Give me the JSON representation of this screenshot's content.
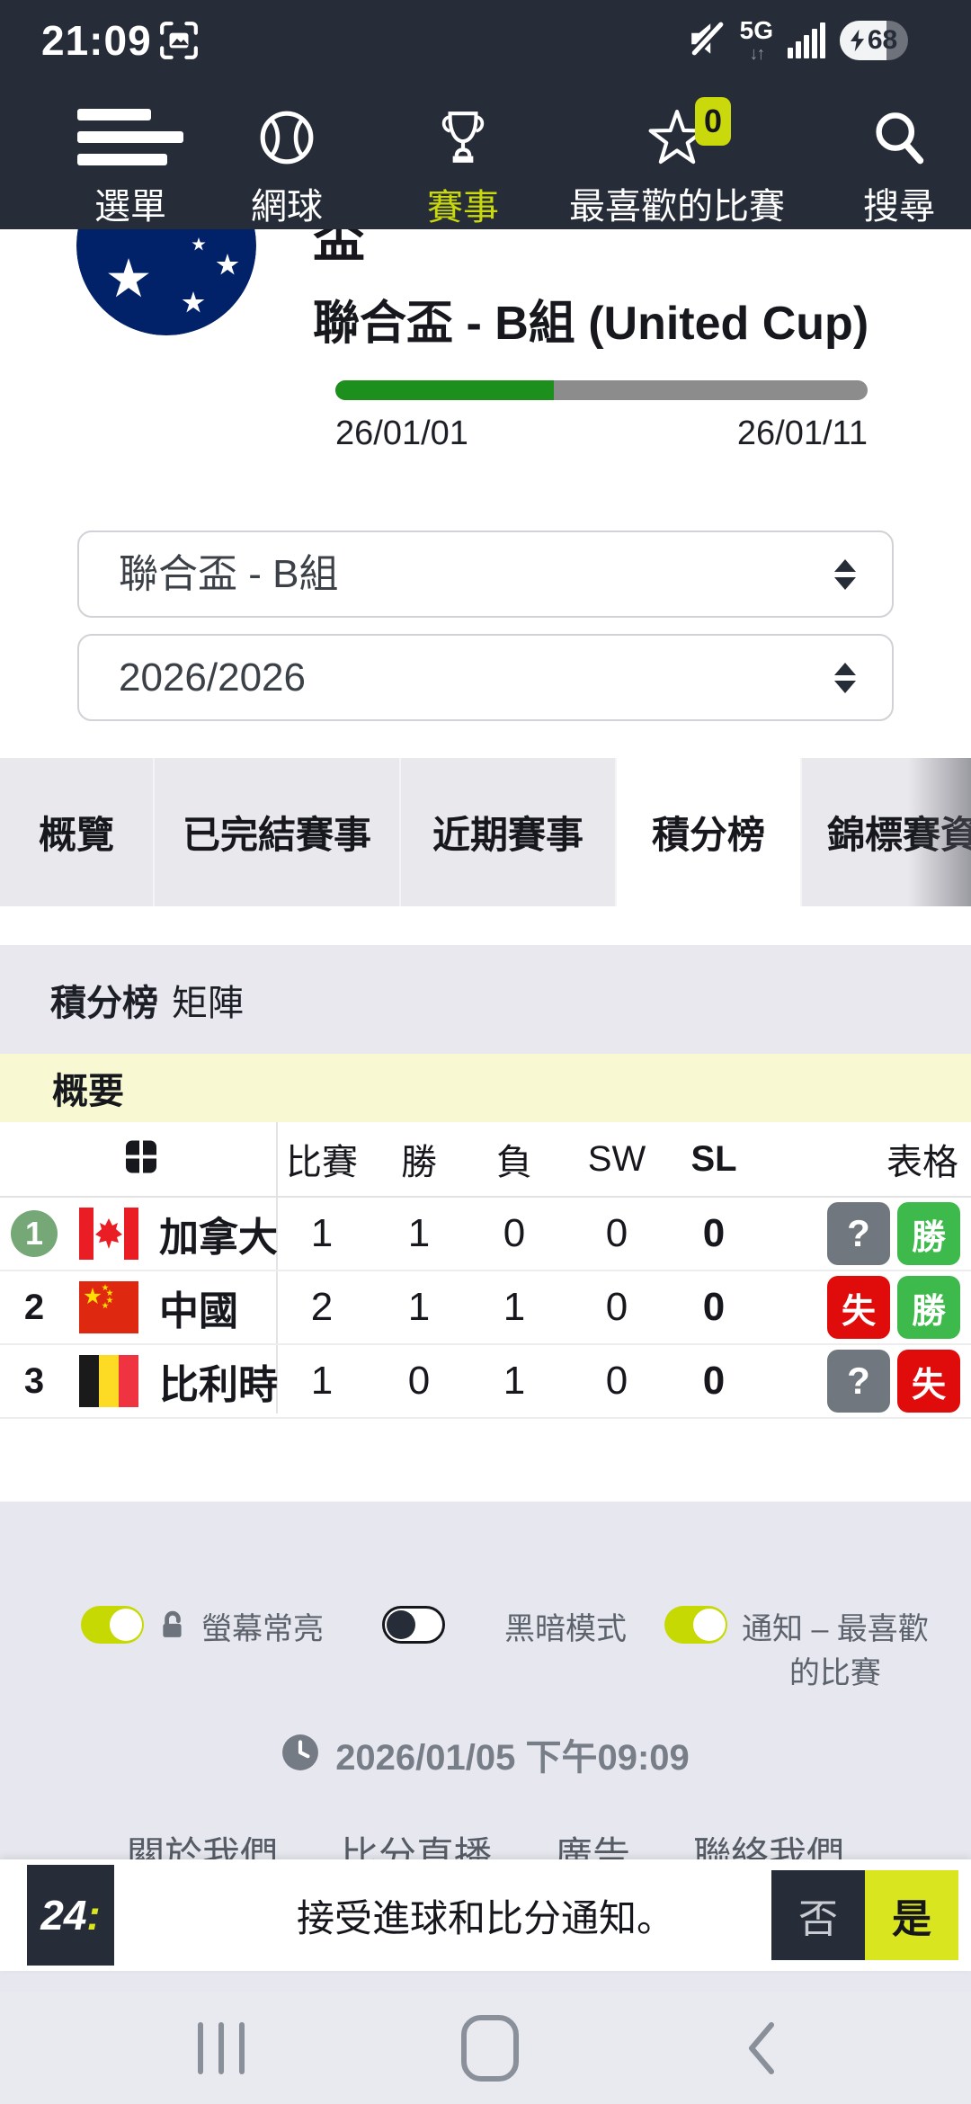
{
  "status_bar": {
    "time": "21:09",
    "network": "5G",
    "battery_pct": "68",
    "battery_fill_pct": 68
  },
  "nav": {
    "items": [
      {
        "label": "選單"
      },
      {
        "label": "網球"
      },
      {
        "label": "賽事"
      },
      {
        "label": "最喜歡的比賽",
        "badge": "0"
      },
      {
        "label": "搜尋"
      }
    ]
  },
  "header": {
    "title_partial": "盃",
    "title": "聯合盃 - B組 (United Cup)",
    "progress_pct": 41,
    "date_start": "26/01/01",
    "date_end": "26/01/11"
  },
  "filters": {
    "tournament": "聯合盃 - B組",
    "season": "2026/2026"
  },
  "tabs": [
    {
      "label": "概覽"
    },
    {
      "label": "已完結賽事"
    },
    {
      "label": "近期賽事"
    },
    {
      "label": "積分榜"
    },
    {
      "label": "錦標賽資訊"
    }
  ],
  "subtabs": {
    "standings": "積分榜",
    "matrix": "矩陣"
  },
  "section_title": "概要",
  "table": {
    "headers": {
      "matches": "比賽",
      "wins": "勝",
      "losses": "負",
      "sw": "SW",
      "sl": "SL",
      "form": "表格"
    },
    "rows": [
      {
        "rank": "1",
        "country": "加拿大",
        "matches": "1",
        "wins": "1",
        "losses": "0",
        "sw": "0",
        "sl": "0",
        "form": [
          {
            "text": "?",
            "status": "unknown"
          },
          {
            "text": "勝",
            "status": "win"
          }
        ]
      },
      {
        "rank": "2",
        "country": "中國",
        "matches": "2",
        "wins": "1",
        "losses": "1",
        "sw": "0",
        "sl": "0",
        "form": [
          {
            "text": "失",
            "status": "loss"
          },
          {
            "text": "勝",
            "status": "win"
          }
        ]
      },
      {
        "rank": "3",
        "country": "比利時",
        "matches": "1",
        "wins": "0",
        "losses": "1",
        "sw": "0",
        "sl": "0",
        "form": [
          {
            "text": "?",
            "status": "unknown"
          },
          {
            "text": "失",
            "status": "loss"
          }
        ]
      }
    ]
  },
  "settings": {
    "keep_awake": {
      "label": "螢幕常亮",
      "on": true
    },
    "dark_mode": {
      "label": "黑暗模式",
      "on": false
    },
    "notifications": {
      "label_line1": "通知 – 最喜歡",
      "label_line2": "的比賽",
      "on": true
    }
  },
  "updated": "2026/01/05 下午09:09",
  "footer_links": [
    {
      "label": "關於我們"
    },
    {
      "label": "比分直播"
    },
    {
      "label": "廣告"
    },
    {
      "label": "聯絡我們"
    }
  ],
  "banner": {
    "logo": "24",
    "logo_colon": ":",
    "message": "接受進球和比分通知。",
    "no_label": "否",
    "yes_label": "是"
  },
  "colors": {
    "accent_yellow": "#c9d90b",
    "win_green": "#3eb94b",
    "loss_red": "#e00b0b",
    "unknown_gray": "#71777f",
    "progress_green": "#1d8f1d",
    "qualified_green": "#76a877",
    "top_bar_navy": "#272d38"
  }
}
